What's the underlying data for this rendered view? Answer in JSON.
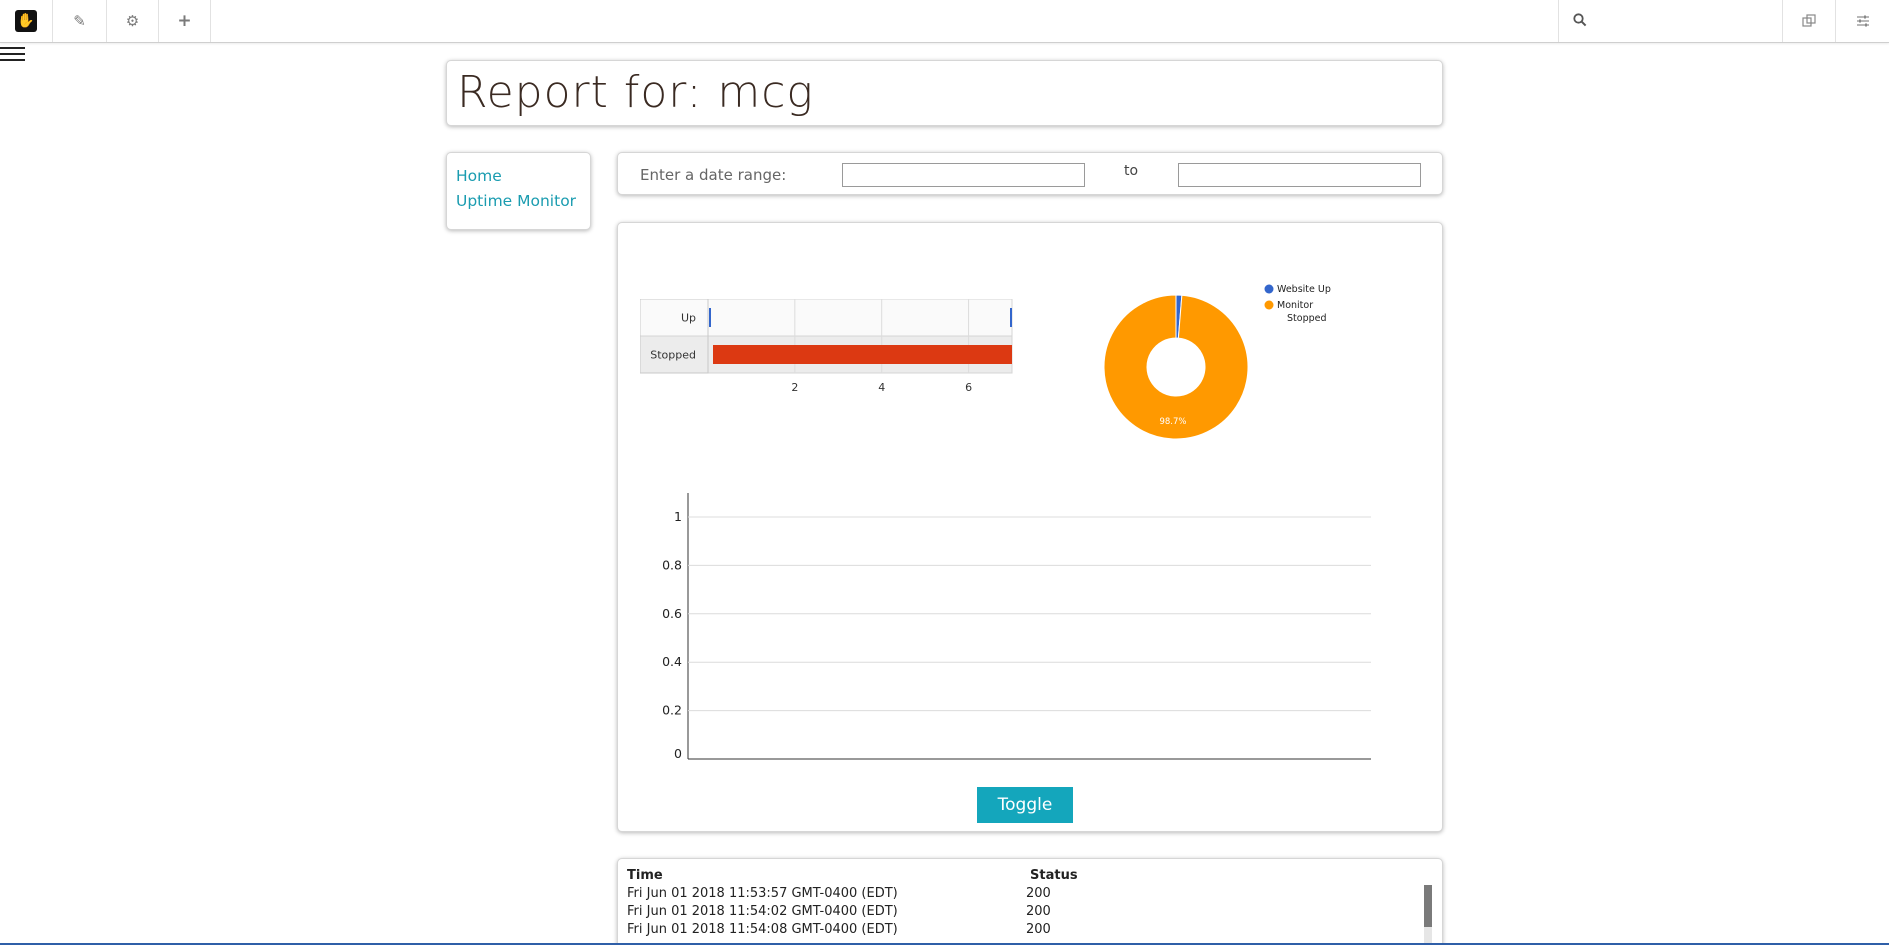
{
  "toolbar": {
    "items": [
      "logo",
      "edit",
      "settings",
      "add"
    ],
    "search_placeholder": ""
  },
  "report": {
    "title": "Report for: mcg"
  },
  "nav": {
    "home": "Home",
    "uptime": "Uptime Monitor"
  },
  "date_range": {
    "label": "Enter a date range:",
    "to": "to",
    "from_value": "",
    "to_value": ""
  },
  "chart_data": [
    {
      "type": "bar",
      "orientation": "horizontal",
      "categories": [
        "Up",
        "Stopped"
      ],
      "values": [
        0.1,
        7
      ],
      "xticks": [
        2,
        4,
        6
      ],
      "xlim": [
        0,
        7
      ],
      "colors": [
        "#3366cc",
        "#dc3912"
      ]
    },
    {
      "type": "pie",
      "donut": true,
      "labels": [
        "Website Up",
        "Monitor Stopped"
      ],
      "values": [
        1.3,
        98.7
      ],
      "colors": [
        "#3366cc",
        "#ff9900"
      ],
      "slice_label": "98.7%",
      "legend_placement": "right"
    },
    {
      "type": "line",
      "yticks": [
        "0",
        "0.2",
        "0.4",
        "0.6",
        "0.8",
        "1"
      ],
      "ylim": [
        0,
        1
      ],
      "series": []
    }
  ],
  "toggle": {
    "label": "Toggle"
  },
  "table": {
    "headers": [
      "Time",
      "Status"
    ],
    "rows": [
      [
        "Fri Jun 01 2018 11:53:57 GMT-0400 (EDT)",
        "200"
      ],
      [
        "Fri Jun 01 2018 11:54:02 GMT-0400 (EDT)",
        "200"
      ],
      [
        "Fri Jun 01 2018 11:54:08 GMT-0400 (EDT)",
        "200"
      ]
    ]
  }
}
